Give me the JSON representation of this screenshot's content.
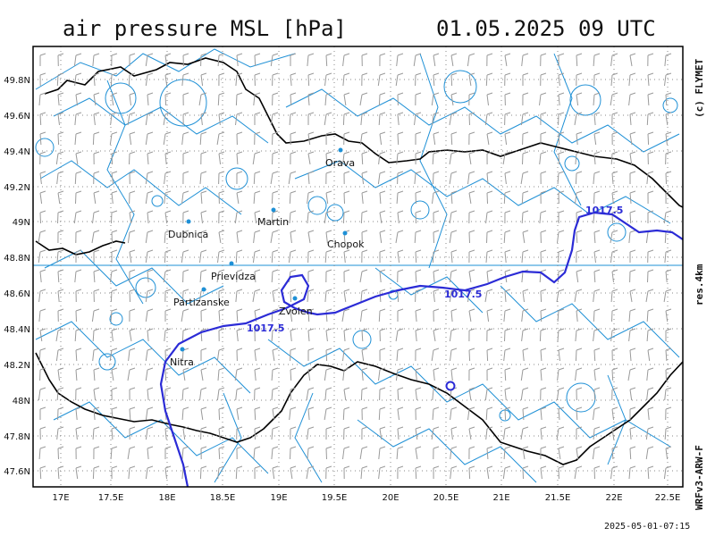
{
  "title": "air pressure MSL [hPa]",
  "datetime": "01.05.2025  09 UTC",
  "copyright": "(c) FLYMET",
  "resolution": "res.4km",
  "model": "WRFv3-ARW-F",
  "generated": "2025-05-01-07:15",
  "lat_labels": [
    "49.8N",
    "49.6N",
    "49.4N",
    "49.2N",
    "49N",
    "48.8N",
    "48.6N",
    "48.4N",
    "48.2N",
    "48N",
    "47.8N",
    "47.6N"
  ],
  "lon_labels": [
    "17E",
    "17.5E",
    "18E",
    "18.5E",
    "19E",
    "19.5E",
    "20E",
    "20.5E",
    "21E",
    "21.5E",
    "22E",
    "22.5E"
  ],
  "cities": [
    {
      "name": "Orava"
    },
    {
      "name": "Martin"
    },
    {
      "name": "Dubnica"
    },
    {
      "name": "Chopok"
    },
    {
      "name": "Prievidza"
    },
    {
      "name": "Partizanske"
    },
    {
      "name": "Zvolen"
    },
    {
      "name": "Nitra"
    }
  ],
  "isobar_label": "1017.5",
  "colors": {
    "isobar": "#2b2bd6",
    "border": "#000000",
    "river": "#1e90d6",
    "grid": "#888888",
    "barb": "#9a9a9a"
  }
}
